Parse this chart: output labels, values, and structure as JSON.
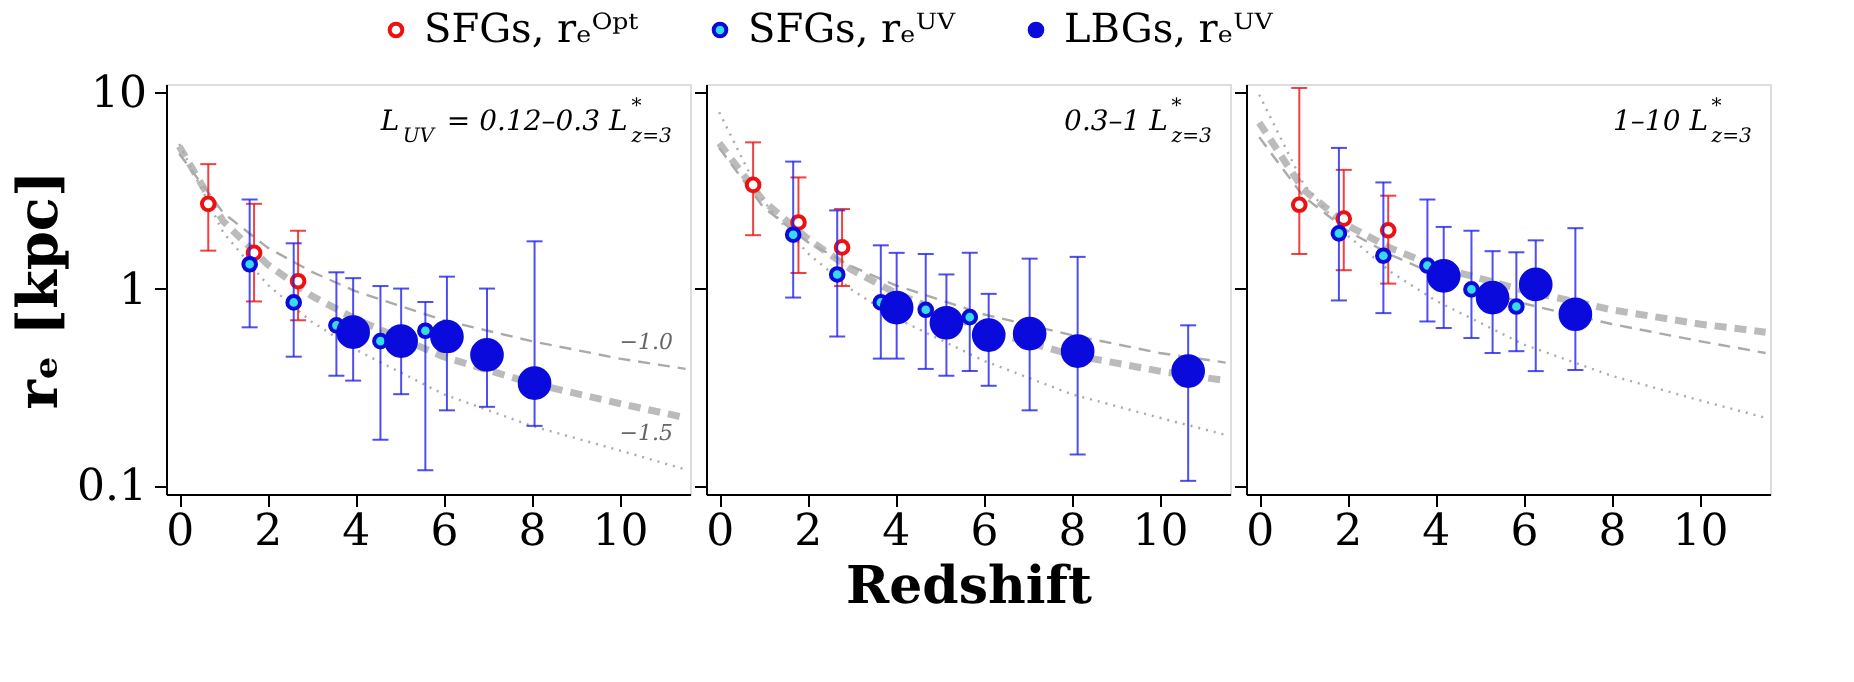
{
  "chart_data": [
    {
      "type": "scatter",
      "ylabel": "rₑ [kpc]",
      "log": true,
      "xlim": [
        -0.3,
        11.6
      ],
      "ylim": [
        0.09,
        11
      ],
      "xticks": [
        0,
        2,
        4,
        6,
        8,
        10
      ],
      "yticks": [
        0.1,
        1,
        10
      ],
      "grid": false,
      "legend": "top",
      "annotations": [
        "L$_{UV}$ = 0.12–0.3 L$^{*}$$_{z=3}$",
        {
          "text": "−1.0",
          "x": 10,
          "y": 0.44
        },
        {
          "text": "−1.5",
          "x": 10,
          "y": 0.15
        }
      ],
      "series": [
        {
          "type": "line",
          "marker": "none",
          "line_style": "dashed",
          "color": "#bbbbbb",
          "x": [
            0,
            1,
            2,
            3,
            4,
            6,
            8,
            10,
            11.5
          ],
          "values": [
            5.3,
            2.2,
            1.33,
            0.92,
            0.7,
            0.45,
            0.33,
            0.26,
            0.22
          ]
        },
        {
          "type": "line",
          "marker": "none",
          "line_style": "dashed",
          "color": "#aaaaaa",
          "x": [
            0,
            1,
            2,
            3,
            4,
            6,
            8,
            10,
            11.5
          ],
          "values": [
            4.86,
            2.43,
            1.62,
            1.22,
            0.97,
            0.69,
            0.54,
            0.44,
            0.39
          ]
        },
        {
          "type": "line",
          "marker": "none",
          "line_style": "dotted",
          "color": "#aaaaaa",
          "x": [
            0,
            1,
            2,
            3,
            4,
            6,
            8,
            10,
            11.5
          ],
          "values": [
            5.45,
            1.93,
            1.05,
            0.68,
            0.49,
            0.29,
            0.2,
            0.15,
            0.12
          ]
        },
        {
          "name": "SFGs, rₑᴼᵖᵗ",
          "marker": "circle",
          "color": "#ee1111",
          "x": [
            0.66,
            1.7,
            2.7
          ],
          "values": [
            2.7,
            1.52,
            1.09
          ],
          "errors": [
            [
              1.56,
              4.3
            ],
            [
              0.86,
              2.7
            ],
            [
              0.69,
              1.97
            ]
          ]
        },
        {
          "name": "SFGs, rₑᵁⱽ",
          "marker": "circle",
          "color": "#33dde8",
          "x": [
            1.6,
            2.6,
            3.57,
            4.57,
            5.59
          ],
          "values": [
            1.33,
            0.85,
            0.65,
            0.54,
            0.61
          ],
          "errors": [
            [
              0.635,
              2.84
            ],
            [
              0.45,
              1.7
            ],
            [
              0.36,
              1.21
            ],
            [
              0.17,
              1.03
            ],
            [
              0.119,
              0.855
            ]
          ]
        },
        {
          "name": "LBGs, rₑᵁⱽ",
          "marker": "circle",
          "color": "#0a0adc",
          "x": [
            3.95,
            5.04,
            6.08,
            6.99,
            8.07
          ],
          "values": [
            0.6,
            0.54,
            0.57,
            0.46,
            0.33
          ],
          "errors": [
            [
              0.34,
              1.13
            ],
            [
              0.29,
              1.0
            ],
            [
              0.24,
              1.15
            ],
            [
              0.25,
              1.0
            ],
            [
              0.2,
              1.74
            ]
          ]
        }
      ]
    },
    {
      "type": "scatter",
      "xlabel": "Redshift",
      "log": true,
      "xlim": [
        -0.3,
        11.6
      ],
      "ylim": [
        0.09,
        11
      ],
      "xticks": [
        0,
        2,
        4,
        6,
        8,
        10
      ],
      "yticks": [
        0.1,
        1,
        10
      ],
      "grid": false,
      "tick_labels": "x",
      "annotations": [
        "0.3–1 L$^{*}$$_{z=3}$"
      ],
      "series": [
        {
          "type": "line",
          "marker": "none",
          "line_style": "dashed",
          "color": "#bbbbbb",
          "x": [
            0,
            1,
            2,
            3,
            4,
            6,
            8,
            10,
            11.5
          ],
          "values": [
            5.5,
            2.8,
            1.8,
            1.25,
            0.95,
            0.62,
            0.46,
            0.38,
            0.34
          ]
        },
        {
          "type": "line",
          "marker": "none",
          "line_style": "dashed",
          "color": "#aaaaaa",
          "x": [
            0,
            1,
            2,
            3,
            4,
            6,
            8,
            10,
            11.5
          ],
          "values": [
            5.2,
            2.6,
            1.73,
            1.3,
            1.04,
            0.74,
            0.58,
            0.47,
            0.42
          ]
        },
        {
          "type": "line",
          "marker": "none",
          "line_style": "dotted",
          "color": "#aaaaaa",
          "x": [
            0,
            1,
            2,
            3,
            4,
            6,
            8,
            10,
            11.5
          ],
          "values": [
            7.9,
            2.8,
            1.52,
            0.99,
            0.71,
            0.43,
            0.29,
            0.22,
            0.18
          ]
        },
        {
          "marker": "circle",
          "color": "#ee1111",
          "x": [
            0.77,
            1.8,
            2.79
          ],
          "values": [
            3.37,
            2.17,
            1.62
          ],
          "errors": [
            [
              1.87,
              5.55
            ],
            [
              1.2,
              3.68
            ],
            [
              1.03,
              2.54
            ]
          ]
        },
        {
          "marker": "circle",
          "color": "#33dde8",
          "x": [
            1.68,
            2.68,
            3.67,
            4.69,
            5.69
          ],
          "values": [
            1.88,
            1.18,
            0.85,
            0.78,
            0.715
          ],
          "errors": [
            [
              0.9,
              4.43
            ],
            [
              0.57,
              2.5
            ],
            [
              0.44,
              1.66
            ],
            [
              0.39,
              1.5
            ],
            [
              0.38,
              1.52
            ]
          ]
        },
        {
          "marker": "circle",
          "color": "#0a0adc",
          "x": [
            4.03,
            5.16,
            6.12,
            7.05,
            8.14,
            10.65
          ],
          "values": [
            0.8,
            0.67,
            0.58,
            0.59,
            0.48,
            0.38
          ],
          "errors": [
            [
              0.44,
              1.52
            ],
            [
              0.36,
              1.18
            ],
            [
              0.32,
              0.94
            ],
            [
              0.24,
              1.42
            ],
            [
              0.143,
              1.45
            ],
            [
              0.105,
              0.65
            ]
          ]
        }
      ]
    },
    {
      "type": "scatter",
      "log": true,
      "xlim": [
        -0.3,
        11.6
      ],
      "ylim": [
        0.09,
        11
      ],
      "xticks": [
        0,
        2,
        4,
        6,
        8,
        10
      ],
      "yticks": [
        0.1,
        1,
        10
      ],
      "grid": false,
      "tick_labels": "x",
      "annotations": [
        "1–10 L$^{*}$$_{z=3}$"
      ],
      "series": [
        {
          "type": "line",
          "marker": "none",
          "line_style": "dashed",
          "color": "#bbbbbb",
          "x": [
            0,
            1,
            2,
            3,
            4,
            6,
            8,
            10,
            11.5
          ],
          "values": [
            7.0,
            3.2,
            2.1,
            1.6,
            1.3,
            0.98,
            0.78,
            0.66,
            0.6
          ]
        },
        {
          "type": "line",
          "marker": "none",
          "line_style": "dashed",
          "color": "#aaaaaa",
          "x": [
            0,
            1,
            2,
            3,
            4,
            6,
            8,
            10,
            11.5
          ],
          "values": [
            5.9,
            2.95,
            1.97,
            1.48,
            1.18,
            0.84,
            0.66,
            0.54,
            0.47
          ]
        },
        {
          "type": "line",
          "marker": "none",
          "line_style": "dotted",
          "color": "#aaaaaa",
          "x": [
            0,
            1,
            2,
            3,
            4,
            6,
            8,
            10,
            11.5
          ],
          "values": [
            9.7,
            3.43,
            1.87,
            1.21,
            0.87,
            0.52,
            0.36,
            0.27,
            0.22
          ]
        },
        {
          "marker": "circle",
          "color": "#ee1111",
          "x": [
            0.91,
            1.92,
            2.93
          ],
          "values": [
            2.67,
            2.27,
            1.98
          ],
          "errors": [
            [
              1.5,
              10.5
            ],
            [
              1.24,
              4.02
            ],
            [
              1.06,
              2.97
            ]
          ]
        },
        {
          "marker": "circle",
          "color": "#33dde8",
          "x": [
            1.81,
            2.82,
            3.82,
            4.82,
            5.84
          ],
          "values": [
            1.91,
            1.47,
            1.31,
            0.99,
            0.81
          ],
          "errors": [
            [
              0.87,
              5.2
            ],
            [
              0.75,
              3.47
            ],
            [
              0.68,
              2.84
            ],
            [
              0.56,
              1.97
            ],
            [
              0.48,
              1.53
            ]
          ]
        },
        {
          "marker": "circle",
          "color": "#0a0adc",
          "x": [
            4.19,
            5.3,
            6.28,
            7.18
          ],
          "values": [
            1.16,
            0.9,
            1.05,
            0.74
          ],
          "errors": [
            [
              0.63,
              2.06
            ],
            [
              0.47,
              1.55
            ],
            [
              0.38,
              1.76
            ],
            [
              0.385,
              2.03
            ]
          ]
        }
      ]
    }
  ]
}
